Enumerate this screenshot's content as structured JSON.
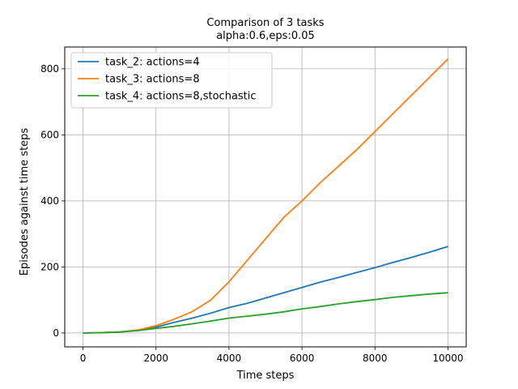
{
  "chart_data": {
    "type": "line",
    "title": "Comparison of 3 tasks",
    "subtitle": "alpha:0.6,eps:0.05",
    "xlabel": "Time steps",
    "ylabel": "Episodes against time steps",
    "xlim": [
      -500,
      10500
    ],
    "ylim": [
      -42,
      866
    ],
    "xticks": [
      0,
      2000,
      4000,
      6000,
      8000,
      10000
    ],
    "yticks": [
      0,
      200,
      400,
      600,
      800
    ],
    "grid": true,
    "legend_position": "top-left",
    "series": [
      {
        "name": "task_2: actions=4",
        "color": "#1f77b4",
        "x": [
          0,
          500,
          1000,
          1500,
          2000,
          2500,
          3000,
          3500,
          4000,
          4500,
          5000,
          5500,
          6000,
          6500,
          7000,
          7500,
          8000,
          8500,
          9000,
          9500,
          10000
        ],
        "y": [
          0,
          1,
          3,
          8,
          18,
          32,
          45,
          60,
          77,
          90,
          106,
          122,
          138,
          154,
          168,
          183,
          198,
          214,
          229,
          245,
          262
        ]
      },
      {
        "name": "task_3: actions=8",
        "color": "#ff7f0e",
        "x": [
          0,
          500,
          1000,
          1500,
          2000,
          2500,
          3000,
          3500,
          4000,
          4500,
          5000,
          5500,
          6000,
          6500,
          7000,
          7500,
          8000,
          8500,
          9000,
          9500,
          10000
        ],
        "y": [
          0,
          1,
          3,
          9,
          22,
          42,
          65,
          100,
          155,
          220,
          285,
          350,
          400,
          455,
          505,
          555,
          610,
          665,
          720,
          775,
          830
        ]
      },
      {
        "name": "task_4: actions=8,stochastic",
        "color": "#2ca02c",
        "x": [
          0,
          500,
          1000,
          1500,
          2000,
          2500,
          3000,
          3500,
          4000,
          4500,
          5000,
          5500,
          6000,
          6500,
          7000,
          7500,
          8000,
          8500,
          9000,
          9500,
          10000
        ],
        "y": [
          0,
          1,
          3,
          7,
          14,
          20,
          28,
          36,
          45,
          51,
          57,
          64,
          73,
          80,
          88,
          95,
          101,
          108,
          113,
          118,
          122
        ]
      }
    ]
  }
}
